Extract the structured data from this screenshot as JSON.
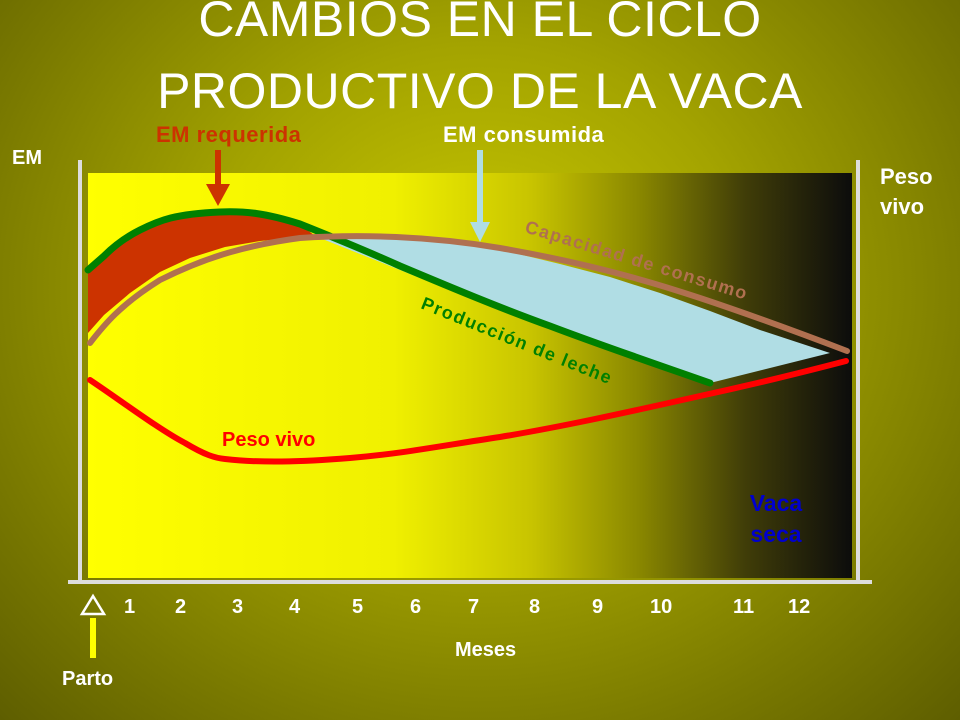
{
  "slide": {
    "title_line1": "CAMBIOS EN EL CICLO",
    "title_line2": "PRODUCTIVO DE LA VACA"
  },
  "axes": {
    "y_left_label": "EM",
    "y_right_label_line1": "Peso",
    "y_right_label_line2": "vivo",
    "x_label": "Meses",
    "x_ticks": [
      "1",
      "2",
      "3",
      "4",
      "5",
      "6",
      "7",
      "8",
      "9",
      "10",
      "11",
      "12"
    ],
    "start_marker": "Parto"
  },
  "annotations": {
    "em_requerida": "EM requerida",
    "em_consumida": "EM consumida",
    "produccion_leche": "Producción de leche",
    "capacidad_consumo": "Capacidad de consumo",
    "peso_vivo": "Peso vivo",
    "vaca_seca_line1": "Vaca",
    "vaca_seca_line2": "seca"
  },
  "colors": {
    "produccion_leche": "#008000",
    "capacidad_consumo": "#b07050",
    "peso_vivo": "#ff0000",
    "em_requerida_fill": "#cc3300",
    "em_consumida_fill": "#b0dde4",
    "vaca_seca": "#0000cc",
    "em_requerida_arrow": "#cc3300",
    "em_consumida_arrow": "#b0dde4",
    "parto_arrow": "#ffff00"
  }
}
